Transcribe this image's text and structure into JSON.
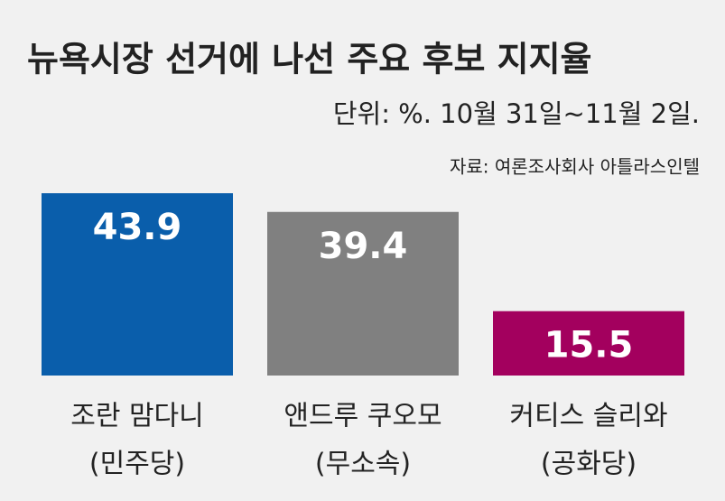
{
  "chart_data": {
    "type": "bar",
    "title": "뉴욕시장 선거에 나선 주요 후보 지지율",
    "subtitle": "단위: %. 10월 31일~11월 2일.",
    "source": "자료: 여론조사회사 아틀라스인텔",
    "categories": [
      "조란 맘다니",
      "앤드루 쿠오모",
      "커티스 슬리와"
    ],
    "sublabels": [
      "(민주당)",
      "(무소속)",
      "(공화당)"
    ],
    "values": [
      43.9,
      39.4,
      15.5
    ],
    "colors": [
      "#0a5eab",
      "#808080",
      "#a3005e"
    ]
  }
}
